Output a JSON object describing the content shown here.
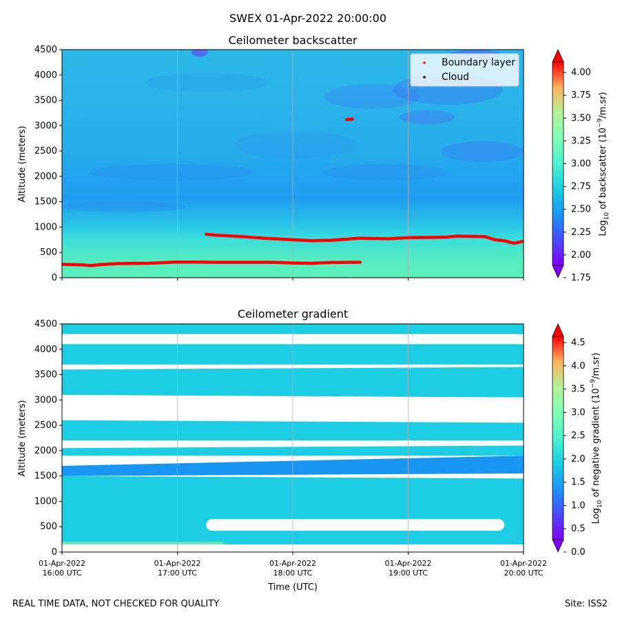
{
  "suptitle": "SWEX 01-Apr-2022 20:00:00",
  "footer": {
    "left": "REAL TIME DATA, NOT CHECKED FOR QUALITY",
    "right": "Site: ISS2"
  },
  "x_ticks": [
    {
      "date": "01-Apr-2022",
      "time": "16:00 UTC"
    },
    {
      "date": "01-Apr-2022",
      "time": "17:00 UTC"
    },
    {
      "date": "01-Apr-2022",
      "time": "18:00 UTC"
    },
    {
      "date": "01-Apr-2022",
      "time": "19:00 UTC"
    },
    {
      "date": "01-Apr-2022",
      "time": "20:00 UTC"
    }
  ],
  "chart_data": [
    {
      "type": "heatmap",
      "title": "Ceilometer backscatter",
      "xlabel": "",
      "ylabel": "Altitude (meters)",
      "xlim": [
        "01-Apr-2022 16:00 UTC",
        "01-Apr-2022 20:00 UTC"
      ],
      "ylim": [
        0,
        4500
      ],
      "yticks": [
        0,
        500,
        1000,
        1500,
        2000,
        2500,
        3000,
        3500,
        4000,
        4500
      ],
      "grid": "vertical",
      "legend": {
        "placement": "top-right",
        "entries": [
          {
            "label": "Boundary layer",
            "color": "#ff0000"
          },
          {
            "label": "Cloud",
            "color": "#000000"
          }
        ]
      },
      "colorbar": {
        "label": "Log10 of backscatter (10^-9/m.sr)",
        "ticks": [
          "1.75",
          "2.00",
          "2.25",
          "2.50",
          "2.75",
          "3.00",
          "3.25",
          "3.50",
          "3.75",
          "4.00"
        ],
        "min": 1.75,
        "max": 4.25,
        "colormap": "rainbow"
      },
      "series": [
        {
          "name": "Boundary layer",
          "x": [
            "16:00",
            "16:10",
            "16:15",
            "16:20",
            "16:30",
            "16:45",
            "17:00",
            "17:10",
            "17:20",
            "17:40",
            "17:50",
            "18:00",
            "18:10",
            "18:20",
            "18:30",
            "18:35"
          ],
          "y": [
            265,
            255,
            240,
            260,
            280,
            285,
            310,
            310,
            305,
            305,
            305,
            290,
            285,
            300,
            305,
            305
          ]
        },
        {
          "name": "Boundary layer",
          "x": [
            "17:15",
            "17:20",
            "17:30",
            "17:45",
            "18:00",
            "18:10",
            "18:20",
            "18:35",
            "18:40",
            "18:50",
            "19:00",
            "19:20",
            "19:25",
            "19:40",
            "19:45",
            "19:50",
            "19:55",
            "20:00"
          ],
          "y": [
            860,
            840,
            820,
            780,
            750,
            730,
            740,
            780,
            775,
            770,
            790,
            800,
            820,
            810,
            750,
            730,
            680,
            720
          ]
        },
        {
          "name": "Boundary layer",
          "x": [
            "18:28",
            "18:31"
          ],
          "y": [
            3120,
            3130
          ]
        }
      ],
      "field_description_levels": [
        {
          "altitude": [
            0,
            400
          ],
          "value_range": [
            2.75,
            3.05
          ]
        },
        {
          "altitude": [
            400,
            900
          ],
          "value_range": [
            2.55,
            2.8
          ]
        },
        {
          "altitude": [
            900,
            2400
          ],
          "value_range": [
            2.25,
            2.55
          ]
        },
        {
          "altitude": [
            2400,
            4500
          ],
          "value_range": [
            2.2,
            2.6
          ]
        }
      ]
    },
    {
      "type": "heatmap",
      "title": "Ceilometer gradient",
      "xlabel": "Time (UTC)",
      "ylabel": "Altitude (meters)",
      "xlim": [
        "01-Apr-2022 16:00 UTC",
        "01-Apr-2022 20:00 UTC"
      ],
      "ylim": [
        0,
        4500
      ],
      "yticks": [
        0,
        500,
        1000,
        1500,
        2000,
        2500,
        3000,
        3500,
        4000,
        4500
      ],
      "grid": "vertical",
      "colorbar": {
        "label": "Log10 of negative gradient (10^-9/m.sr)",
        "ticks": [
          "0.0",
          "0.5",
          "1.0",
          "1.5",
          "2.0",
          "2.5",
          "3.0",
          "3.5",
          "4.0",
          "4.5"
        ],
        "min": 0.0,
        "max": 4.9,
        "colormap": "rainbow"
      },
      "layers": [
        {
          "altitude_bottom": [
            150,
            150
          ],
          "altitude_top": [
            1500,
            1450
          ],
          "value": 1.9
        },
        {
          "altitude_bottom": [
            1500,
            1550
          ],
          "altitude_top": [
            1700,
            1900
          ],
          "value": 1.5
        },
        {
          "altitude_bottom": [
            1900,
            1900
          ],
          "altitude_top": [
            2050,
            2100
          ],
          "value": 1.6
        },
        {
          "altitude_bottom": [
            2200,
            2200
          ],
          "altitude_top": [
            2600,
            2550
          ],
          "value": 1.7
        },
        {
          "altitude_bottom": [
            3100,
            3050
          ],
          "altitude_top": [
            3600,
            3650
          ],
          "value": 1.8
        },
        {
          "altitude_bottom": [
            3700,
            3700
          ],
          "altitude_top": [
            4100,
            4100
          ],
          "value": 1.9
        },
        {
          "altitude_bottom": [
            4300,
            4300
          ],
          "altitude_top": [
            4500,
            4500
          ],
          "value": 1.9
        }
      ],
      "gap": {
        "altitude": [
          420,
          650
        ],
        "x": [
          "17:15",
          "19:50"
        ]
      }
    }
  ]
}
